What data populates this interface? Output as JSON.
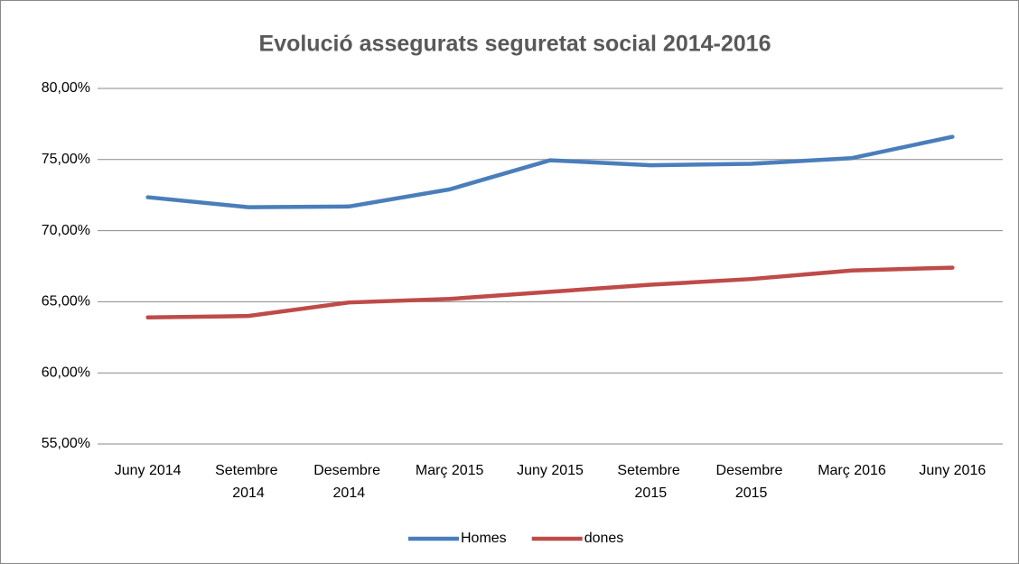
{
  "chart_data": {
    "type": "line",
    "title": "Evolució assegurats seguretat social 2014-2016",
    "categories": [
      "Juny 2014",
      "Setembre 2014",
      "Desembre 2014",
      "Març 2015",
      "Juny 2015",
      "Setembre 2015",
      "Desembre 2015",
      "Març 2016",
      "Juny 2016"
    ],
    "series": [
      {
        "name": "Homes",
        "color": "#4a7ebb",
        "values": [
          72.35,
          71.65,
          71.7,
          72.9,
          74.95,
          74.6,
          74.7,
          75.1,
          76.6
        ]
      },
      {
        "name": "dones",
        "color": "#be4b48",
        "values": [
          63.9,
          64.0,
          64.95,
          65.2,
          65.7,
          66.2,
          66.6,
          67.2,
          67.4
        ]
      }
    ],
    "ylim": [
      55,
      80
    ],
    "yticks": [
      {
        "value": 55,
        "label": "55,00%"
      },
      {
        "value": 60,
        "label": "60,00%"
      },
      {
        "value": 65,
        "label": "65,00%"
      },
      {
        "value": 70,
        "label": "70,00%"
      },
      {
        "value": 75,
        "label": "75,00%"
      },
      {
        "value": 80,
        "label": "80,00%"
      }
    ],
    "grid": true,
    "legend": "bottom"
  }
}
